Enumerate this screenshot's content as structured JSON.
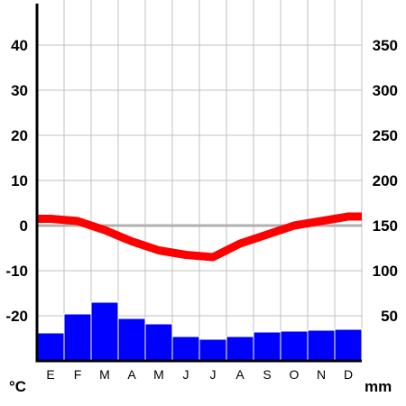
{
  "chart_data": {
    "type": "climate-diagram",
    "categories": [
      "E",
      "F",
      "M",
      "A",
      "M",
      "J",
      "J",
      "A",
      "S",
      "O",
      "N",
      "D"
    ],
    "series": [
      {
        "kind": "line",
        "values": [
          1.5,
          1.0,
          -1.0,
          -3.5,
          -5.5,
          -6.5,
          -7.0,
          -4.0,
          -2.0,
          0.0,
          1.0,
          2.0
        ]
      },
      {
        "kind": "bar",
        "values": [
          31,
          52,
          65,
          47,
          41,
          27,
          24,
          27,
          32,
          33,
          34,
          35
        ]
      }
    ],
    "y_left": {
      "unit": "°C",
      "ylim": [
        -30,
        50
      ],
      "ticks": [
        -20,
        -10,
        0,
        10,
        20,
        30,
        40
      ]
    },
    "y_right": {
      "unit": "mm",
      "ylim": [
        0,
        400
      ],
      "ticks": [
        50,
        100,
        150,
        200,
        250,
        300,
        350
      ]
    },
    "grid": true,
    "colors": {
      "temperature": "#ff0000",
      "precipitation": "#0000ff",
      "grid": "#c0c0c0",
      "zero_line": "#b0b0b0"
    }
  }
}
